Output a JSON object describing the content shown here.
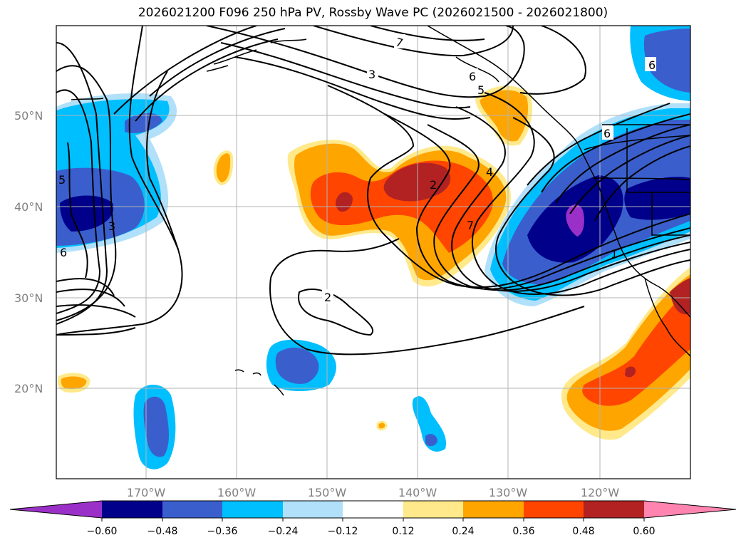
{
  "title": "2026021200 F096 250 hPa PV, Rossby Wave PC (2026021500 - 2026021800)",
  "lat_labels": [
    "50°N",
    "40°N",
    "30°N",
    "20°N"
  ],
  "lon_labels": [
    "170°W",
    "160°W",
    "150°W",
    "140°W",
    "130°W",
    "120°W"
  ],
  "colorbar": {
    "ticks": [
      "−0.60",
      "−0.48",
      "−0.36",
      "−0.24",
      "−0.12",
      "0.12",
      "0.24",
      "0.36",
      "0.48",
      "0.60"
    ],
    "colors": {
      "under": "#9b30c8",
      "bins": [
        "#00008b",
        "#3a5fcd",
        "#00bfff",
        "#b0e0fa",
        "#ffffff",
        "#ffe98a",
        "#ffa500",
        "#ff4500",
        "#b22222"
      ],
      "over": "#ff85b0"
    }
  },
  "contour_labels": [
    "7",
    "3",
    "6",
    "5",
    "6",
    "2",
    "4",
    "7",
    "2",
    "1",
    "5",
    "3",
    "6",
    "6"
  ]
}
